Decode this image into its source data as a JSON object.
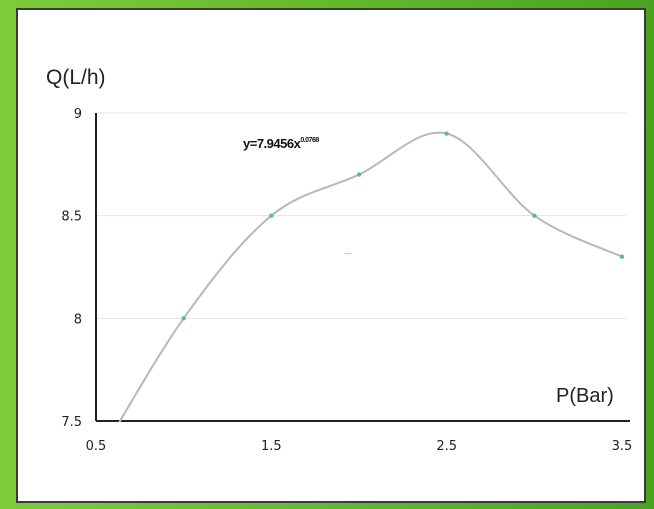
{
  "chart_data": {
    "type": "line",
    "ylabel": "Q(L/h)",
    "xlabel": "P(Bar)",
    "equation_base": "y=7.9456x",
    "equation_exp": "0.0768",
    "annotation": "—",
    "x": [
      0.5,
      1.0,
      1.5,
      2.0,
      2.5,
      3.0,
      3.5
    ],
    "y": [
      7.3,
      8.0,
      8.5,
      8.7,
      8.9,
      8.5,
      8.3
    ],
    "xlim": [
      0.5,
      3.5
    ],
    "ylim": [
      7.5,
      9
    ],
    "xticks": [
      "0.5",
      "1.5",
      "2.5",
      "3.5"
    ],
    "yticks": [
      "7.5",
      "8",
      "8.5",
      "9"
    ],
    "grid": true,
    "line_color": "#b8b8b8",
    "marker_color": "#5fb8a0"
  }
}
